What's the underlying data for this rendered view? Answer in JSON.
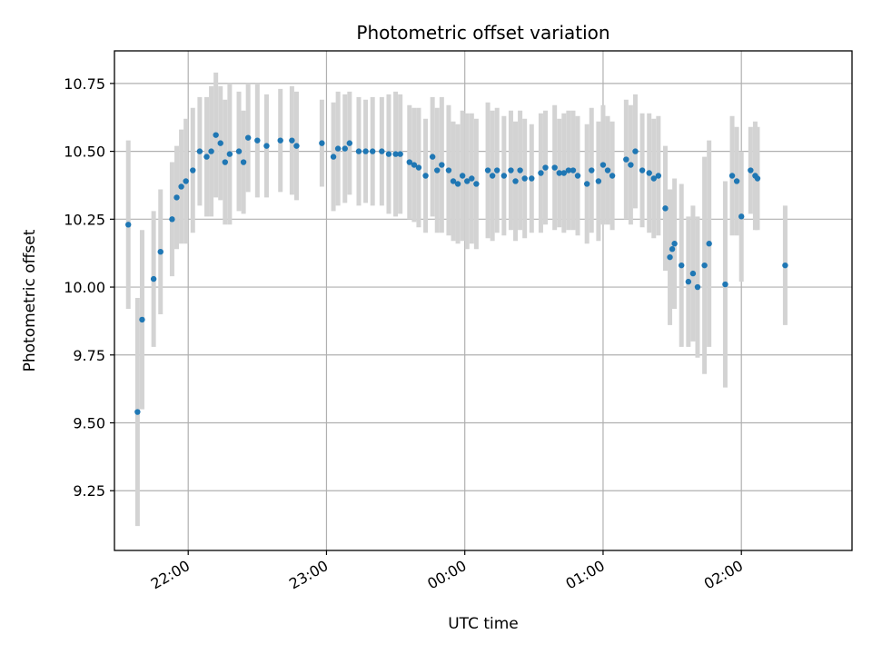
{
  "chart_data": {
    "type": "scatter",
    "title": "Photometric offset variation",
    "xlabel": "UTC time",
    "ylabel": "Photometric offset",
    "x_unit": "minutes",
    "x_range": [
      "21:28",
      "02:48"
    ],
    "ylim": [
      9.03,
      10.87
    ],
    "grid": true,
    "x_ticks": [
      "22:00",
      "23:00",
      "00:00",
      "01:00",
      "02:00"
    ],
    "y_ticks": [
      "9.25",
      "9.50",
      "9.75",
      "10.00",
      "10.25",
      "10.50",
      "10.75"
    ],
    "colors": {
      "point": "#1f77b4",
      "errorbar": "#d3d3d3",
      "grid": "#b0b0b0",
      "axes": "#000000"
    },
    "series": [
      {
        "points": [
          [
            "21:34",
            10.23,
            0.31
          ],
          [
            "21:38",
            9.54,
            0.42
          ],
          [
            "21:40",
            9.88,
            0.33
          ],
          [
            "21:45",
            10.03,
            0.25
          ],
          [
            "21:48",
            10.13,
            0.23
          ],
          [
            "21:53",
            10.25,
            0.21
          ],
          [
            "21:55",
            10.33,
            0.19
          ],
          [
            "21:57",
            10.37,
            0.21
          ],
          [
            "21:59",
            10.39,
            0.23
          ],
          [
            "22:02",
            10.43,
            0.23
          ],
          [
            "22:05",
            10.5,
            0.2
          ],
          [
            "22:08",
            10.48,
            0.22
          ],
          [
            "22:10",
            10.5,
            0.24
          ],
          [
            "22:12",
            10.56,
            0.23
          ],
          [
            "22:14",
            10.53,
            0.21
          ],
          [
            "22:16",
            10.46,
            0.23
          ],
          [
            "22:18",
            10.49,
            0.26
          ],
          [
            "22:22",
            10.5,
            0.22
          ],
          [
            "22:24",
            10.46,
            0.19
          ],
          [
            "22:26",
            10.55,
            0.2
          ],
          [
            "22:30",
            10.54,
            0.21
          ],
          [
            "22:34",
            10.52,
            0.19
          ],
          [
            "22:40",
            10.54,
            0.19
          ],
          [
            "22:45",
            10.54,
            0.2
          ],
          [
            "22:47",
            10.52,
            0.2
          ],
          [
            "22:58",
            10.53,
            0.16
          ],
          [
            "23:03",
            10.48,
            0.2
          ],
          [
            "23:05",
            10.51,
            0.21
          ],
          [
            "23:08",
            10.51,
            0.2
          ],
          [
            "23:10",
            10.53,
            0.19
          ],
          [
            "23:14",
            10.5,
            0.2
          ],
          [
            "23:17",
            10.5,
            0.19
          ],
          [
            "23:20",
            10.5,
            0.2
          ],
          [
            "23:24",
            10.5,
            0.2
          ],
          [
            "23:27",
            10.49,
            0.22
          ],
          [
            "23:30",
            10.49,
            0.23
          ],
          [
            "23:32",
            10.49,
            0.22
          ],
          [
            "23:36",
            10.46,
            0.21
          ],
          [
            "23:38",
            10.45,
            0.21
          ],
          [
            "23:40",
            10.44,
            0.22
          ],
          [
            "23:43",
            10.41,
            0.21
          ],
          [
            "23:46",
            10.48,
            0.22
          ],
          [
            "23:48",
            10.43,
            0.23
          ],
          [
            "23:50",
            10.45,
            0.25
          ],
          [
            "23:53",
            10.43,
            0.24
          ],
          [
            "23:55",
            10.39,
            0.22
          ],
          [
            "23:57",
            10.38,
            0.22
          ],
          [
            "23:59",
            10.41,
            0.24
          ],
          [
            "00:01",
            10.39,
            0.25
          ],
          [
            "00:03",
            10.4,
            0.24
          ],
          [
            "00:05",
            10.38,
            0.24
          ],
          [
            "00:10",
            10.43,
            0.25
          ],
          [
            "00:12",
            10.41,
            0.24
          ],
          [
            "00:14",
            10.43,
            0.23
          ],
          [
            "00:17",
            10.41,
            0.22
          ],
          [
            "00:20",
            10.43,
            0.22
          ],
          [
            "00:22",
            10.39,
            0.22
          ],
          [
            "00:24",
            10.43,
            0.22
          ],
          [
            "00:26",
            10.4,
            0.22
          ],
          [
            "00:29",
            10.4,
            0.2
          ],
          [
            "00:33",
            10.42,
            0.22
          ],
          [
            "00:35",
            10.44,
            0.21
          ],
          [
            "00:39",
            10.44,
            0.23
          ],
          [
            "00:41",
            10.42,
            0.2
          ],
          [
            "00:43",
            10.42,
            0.22
          ],
          [
            "00:45",
            10.43,
            0.22
          ],
          [
            "00:47",
            10.43,
            0.22
          ],
          [
            "00:49",
            10.41,
            0.22
          ],
          [
            "00:53",
            10.38,
            0.22
          ],
          [
            "00:55",
            10.43,
            0.23
          ],
          [
            "00:58",
            10.39,
            0.22
          ],
          [
            "01:00",
            10.45,
            0.22
          ],
          [
            "01:02",
            10.43,
            0.2
          ],
          [
            "01:04",
            10.41,
            0.2
          ],
          [
            "01:10",
            10.47,
            0.22
          ],
          [
            "01:12",
            10.45,
            0.22
          ],
          [
            "01:14",
            10.5,
            0.21
          ],
          [
            "01:17",
            10.43,
            0.21
          ],
          [
            "01:20",
            10.42,
            0.22
          ],
          [
            "01:22",
            10.4,
            0.22
          ],
          [
            "01:24",
            10.41,
            0.22
          ],
          [
            "01:27",
            10.29,
            0.23
          ],
          [
            "01:29",
            10.11,
            0.25
          ],
          [
            "01:30",
            10.14,
            0.22
          ],
          [
            "01:31",
            10.16,
            0.24
          ],
          [
            "01:34",
            10.08,
            0.3
          ],
          [
            "01:37",
            10.02,
            0.24
          ],
          [
            "01:39",
            10.05,
            0.25
          ],
          [
            "01:41",
            10.0,
            0.26
          ],
          [
            "01:44",
            10.08,
            0.4
          ],
          [
            "01:46",
            10.16,
            0.38
          ],
          [
            "01:53",
            10.01,
            0.38
          ],
          [
            "01:56",
            10.41,
            0.22
          ],
          [
            "01:58",
            10.39,
            0.2
          ],
          [
            "02:00",
            10.26,
            0.24
          ],
          [
            "02:04",
            10.43,
            0.16
          ],
          [
            "02:06",
            10.41,
            0.2
          ],
          [
            "02:07",
            10.4,
            0.19
          ],
          [
            "02:19",
            10.08,
            0.22
          ]
        ]
      }
    ]
  }
}
